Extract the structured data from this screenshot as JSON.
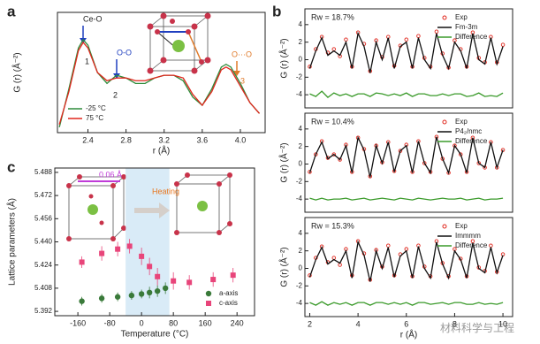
{
  "panel_labels": [
    "a",
    "b",
    "c"
  ],
  "watermark": "材料科学与工程",
  "chart_data": [
    {
      "type": "line",
      "xlabel": "r (Å)",
      "ylabel": "G (r) (Å⁻²)",
      "x": [
        2.1,
        2.2,
        2.3,
        2.35,
        2.4,
        2.5,
        2.6,
        2.7,
        2.8,
        2.9,
        3.0,
        3.1,
        3.2,
        3.3,
        3.4,
        3.5,
        3.6,
        3.7,
        3.8,
        3.85,
        3.9,
        4.0,
        4.1,
        4.2
      ],
      "xlim": [
        2.08,
        4.26
      ],
      "ylim": [
        -1.2,
        3.2
      ],
      "xticks": [
        2.4,
        2.8,
        3.2,
        3.6,
        {
          "value": 4,
          "label": "4.0"
        }
      ],
      "legend": "lower left",
      "annotations": [
        "Ce-O",
        "1",
        "O-O",
        "2",
        "O···O",
        "3"
      ],
      "series": [
        {
          "name": "-25 °C",
          "color": "#2e8b3a",
          "style": "line",
          "values": [
            -1.0,
            0.4,
            1.9,
            2.2,
            2.0,
            1.0,
            0.6,
            0.9,
            0.8,
            0.6,
            0.6,
            0.8,
            0.9,
            0.9,
            0.7,
            0.1,
            -0.2,
            0.4,
            1.2,
            1.3,
            1.2,
            0.6,
            -0.1,
            -0.5
          ]
        },
        {
          "name": "75 °C",
          "color": "#e0261c",
          "style": "line",
          "values": [
            -0.9,
            0.3,
            1.8,
            2.1,
            1.9,
            1.0,
            0.7,
            0.8,
            0.8,
            0.7,
            0.7,
            0.8,
            0.9,
            0.9,
            0.8,
            0.2,
            -0.2,
            0.3,
            1.1,
            1.2,
            1.1,
            0.5,
            -0.1,
            -0.5
          ]
        }
      ]
    },
    {
      "type": "line",
      "ylabel": "G (r) (Å⁻²)",
      "x": [
        2,
        2.25,
        2.5,
        2.75,
        3,
        3.25,
        3.5,
        3.75,
        4,
        4.25,
        4.5,
        4.75,
        5,
        5.25,
        5.5,
        5.75,
        6,
        6.25,
        6.5,
        6.75,
        7,
        7.25,
        7.5,
        7.75,
        8,
        8.25,
        8.5,
        8.75,
        9,
        9.25,
        9.5,
        9.75,
        10
      ],
      "xlim": [
        1.8,
        10.4
      ],
      "ylim": [
        -5.5,
        5.8
      ],
      "yticks": [
        -4,
        -2,
        0,
        2,
        4
      ],
      "legend": "upper right",
      "annotations": [
        "Rw = 18.7%"
      ],
      "series": [
        {
          "name": "Exp",
          "color": "#e0261c",
          "style": "markers",
          "values": [
            -0.8,
            1.2,
            2.6,
            0.8,
            1.2,
            0.4,
            2.3,
            -0.8,
            3.1,
            1.8,
            -1.3,
            2.2,
            0.3,
            2.6,
            -0.7,
            1.6,
            2.3,
            -0.8,
            2.7,
            0.2,
            -0.8,
            3.2,
            0.7,
            -0.9,
            2.2,
            1.2,
            -0.8,
            3.1,
            0.2,
            -0.3,
            2.6,
            -0.3,
            1.7
          ]
        },
        {
          "name": "Fm-3m",
          "color": "#111111",
          "style": "line",
          "values": [
            -1,
            1,
            2.5,
            0.5,
            1,
            0.5,
            2,
            -1,
            3,
            1.5,
            -1.5,
            2,
            0,
            2.5,
            -1,
            1.5,
            2,
            -1,
            2.5,
            0,
            -1,
            3,
            0.5,
            -1,
            2,
            1,
            -1,
            3,
            0,
            -0.5,
            2.5,
            -0.5,
            1.5
          ]
        },
        {
          "name": "Difference",
          "color": "#3a9a2a",
          "style": "line",
          "values": [
            -3.9,
            -4.2,
            -3.6,
            -4.3,
            -3.8,
            -4.1,
            -3.9,
            -4.2,
            -3.9,
            -3.9,
            -4.2,
            -3.8,
            -3.9,
            -4.1,
            -3.9,
            -4.1,
            -3.8,
            -4.2,
            -3.9,
            -3.9,
            -4.1,
            -4.1,
            -3.9,
            -4.1,
            -3.9,
            -3.9,
            -4.2,
            -4.1,
            -3.8,
            -4.2,
            -4.1,
            -4.2,
            -3.8
          ]
        }
      ]
    },
    {
      "type": "line",
      "ylabel": "G (r) (Å⁻²)",
      "x": [
        2,
        2.25,
        2.5,
        2.75,
        3,
        3.25,
        3.5,
        3.75,
        4,
        4.25,
        4.5,
        4.75,
        5,
        5.25,
        5.5,
        5.75,
        6,
        6.25,
        6.5,
        6.75,
        7,
        7.25,
        7.5,
        7.75,
        8,
        8.25,
        8.5,
        8.75,
        9,
        9.25,
        9.5,
        9.75,
        10
      ],
      "xlim": [
        1.8,
        10.4
      ],
      "ylim": [
        -5.5,
        5.8
      ],
      "yticks": [
        -4,
        -2,
        0,
        2,
        4
      ],
      "legend": "upper right",
      "annotations": [
        "Rw = 10.4%"
      ],
      "series": [
        {
          "name": "Exp",
          "color": "#e0261c",
          "style": "markers",
          "values": [
            -0.9,
            1.1,
            2.6,
            0.7,
            1.1,
            0.5,
            2.2,
            -0.9,
            3.0,
            1.7,
            -1.4,
            2.1,
            0.2,
            2.5,
            -0.8,
            1.5,
            2.2,
            -0.9,
            2.6,
            0.1,
            -0.9,
            3.1,
            0.6,
            -1.0,
            2.1,
            1.1,
            -0.9,
            3.0,
            0.1,
            -0.4,
            2.5,
            -0.4,
            1.6
          ]
        },
        {
          "name": "P4₂/nmc",
          "color": "#111111",
          "style": "line",
          "values": [
            -1,
            1.1,
            2.5,
            0.6,
            1.1,
            0.5,
            2.1,
            -1,
            3,
            1.6,
            -1.5,
            2.1,
            0.1,
            2.5,
            -0.9,
            1.5,
            2.1,
            -1,
            2.6,
            0.1,
            -1,
            3.1,
            0.6,
            -1,
            2.1,
            1.1,
            -1,
            3,
            0.1,
            -0.4,
            2.5,
            -0.4,
            1.6
          ]
        },
        {
          "name": "Difference",
          "color": "#3a9a2a",
          "style": "line",
          "values": [
            -3.9,
            -4.1,
            -3.9,
            -4.1,
            -4.0,
            -4.0,
            -3.9,
            -4.1,
            -4.0,
            -3.9,
            -4.1,
            -4.0,
            -3.9,
            -4.0,
            -4.1,
            -3.9,
            -4.0,
            -4.1,
            -3.9,
            -4.0,
            -4.1,
            -4.0,
            -3.9,
            -4.0,
            -4.0,
            -3.9,
            -4.1,
            -4.0,
            -3.9,
            -4.1,
            -4.0,
            -4.0,
            -3.9
          ]
        }
      ]
    },
    {
      "type": "line",
      "ylabel": "G (r) (Å⁻²)",
      "xlabel": "r (Å)",
      "x": [
        2,
        2.25,
        2.5,
        2.75,
        3,
        3.25,
        3.5,
        3.75,
        4,
        4.25,
        4.5,
        4.75,
        5,
        5.25,
        5.5,
        5.75,
        6,
        6.25,
        6.5,
        6.75,
        7,
        7.25,
        7.5,
        7.75,
        8,
        8.25,
        8.5,
        8.75,
        9,
        9.25,
        9.5,
        9.75,
        10
      ],
      "xlim": [
        1.8,
        10.4
      ],
      "ylim": [
        -5.5,
        5.8
      ],
      "yticks": [
        -4,
        -2,
        0,
        2,
        4
      ],
      "xticks": [
        2,
        4,
        6,
        8,
        10
      ],
      "legend": "upper right",
      "annotations": [
        "Rw = 15.3%"
      ],
      "series": [
        {
          "name": "Exp",
          "color": "#e0261c",
          "style": "markers",
          "values": [
            -0.8,
            1.2,
            2.5,
            0.7,
            1.2,
            0.4,
            2.2,
            -0.8,
            3.1,
            1.7,
            -1.3,
            2.1,
            0.2,
            2.6,
            -0.8,
            1.6,
            2.2,
            -0.9,
            2.6,
            0.2,
            -0.9,
            3.1,
            0.6,
            -0.9,
            2.2,
            1.1,
            -0.9,
            3.1,
            0.1,
            -0.3,
            2.6,
            -0.4,
            1.6
          ]
        },
        {
          "name": "Immmm",
          "color": "#111111",
          "style": "line",
          "values": [
            -1,
            1,
            2.4,
            0.5,
            1,
            0.6,
            2,
            -1.1,
            3,
            1.5,
            -1.5,
            2,
            0,
            2.4,
            -1,
            1.4,
            2,
            -1.1,
            2.5,
            0,
            -1.1,
            3,
            0.5,
            -1.1,
            2,
            1,
            -1.1,
            2.9,
            0,
            -0.5,
            2.4,
            -0.5,
            1.5
          ]
        },
        {
          "name": "Difference",
          "color": "#3a9a2a",
          "style": "line",
          "values": [
            -3.9,
            -4.2,
            -3.8,
            -4.2,
            -3.9,
            -4.1,
            -3.9,
            -4.2,
            -3.9,
            -3.9,
            -4.2,
            -3.9,
            -3.9,
            -4.1,
            -3.9,
            -4.1,
            -3.9,
            -4.2,
            -3.9,
            -3.9,
            -4.1,
            -4.0,
            -3.9,
            -4.1,
            -3.9,
            -3.9,
            -4.1,
            -4.1,
            -3.9,
            -4.1,
            -4.0,
            -4.1,
            -3.9
          ]
        }
      ]
    },
    {
      "type": "scatter",
      "xlabel": "Temperature (°C)",
      "ylabel": "Lattice parameters (Å)",
      "xlim": [
        -218,
        284
      ],
      "ylim": [
        5.389,
        5.491
      ],
      "xticks": [
        -160,
        -80,
        0,
        80,
        160,
        240
      ],
      "yticks": [
        5.392,
        5.408,
        5.424,
        {
          "value": 5.44,
          "label": "5.440"
        },
        5.456,
        5.472,
        5.488
      ],
      "highlight": [
        -40,
        70
      ],
      "legend": "lower right",
      "annotations": [
        "Heating",
        "0.06 Å"
      ],
      "series": [
        {
          "name": "a-axis",
          "color": "#3a7a3a",
          "style": "circle",
          "x": [
            -150,
            -100,
            -60,
            -25,
            0,
            20,
            40,
            60
          ],
          "values": [
            5.399,
            5.401,
            5.402,
            5.403,
            5.404,
            5.405,
            5.406,
            5.408
          ],
          "errors": [
            0.003,
            0.003,
            0.003,
            0.003,
            0.003,
            0.004,
            0.004,
            0.004
          ]
        },
        {
          "name": "c-axis",
          "color": "#e8457a",
          "style": "square",
          "x": [
            -150,
            -100,
            -60,
            -30,
            0,
            20,
            40,
            80,
            120,
            180,
            230
          ],
          "values": [
            5.426,
            5.432,
            5.435,
            5.437,
            5.43,
            5.423,
            5.416,
            5.413,
            5.412,
            5.414,
            5.417
          ],
          "errors": [
            0.004,
            0.005,
            0.005,
            0.005,
            0.006,
            0.006,
            0.006,
            0.006,
            0.005,
            0.005,
            0.005
          ]
        }
      ]
    }
  ]
}
